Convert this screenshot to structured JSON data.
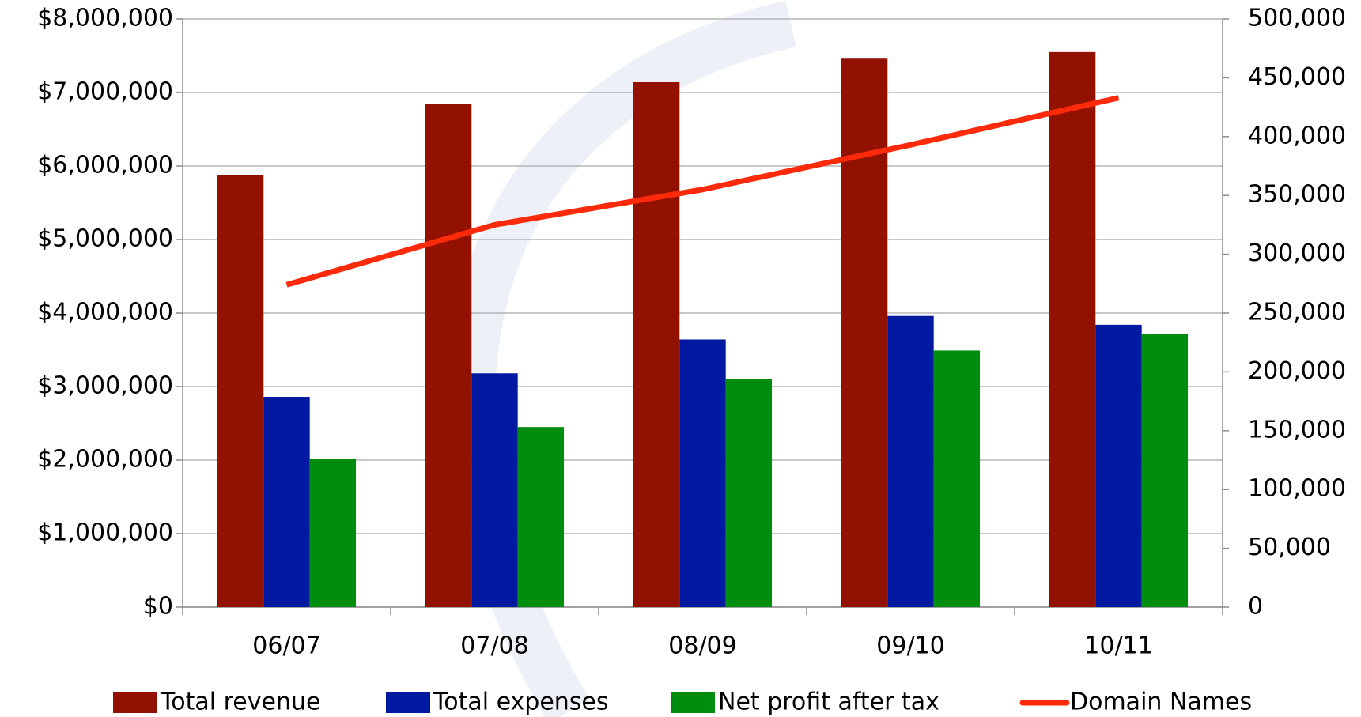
{
  "chart_data": {
    "type": "bar",
    "categories": [
      "06/07",
      "07/08",
      "08/09",
      "09/10",
      "10/11"
    ],
    "series": [
      {
        "name": "Total revenue",
        "color": "#931100",
        "values": [
          5880000,
          6840000,
          7140000,
          7460000,
          7550000
        ]
      },
      {
        "name": "Total expenses",
        "color": "#0019a0",
        "values": [
          2860000,
          3180000,
          3640000,
          3960000,
          3840000
        ]
      },
      {
        "name": "Net profit after tax",
        "color": "#008c0e",
        "values": [
          2020000,
          2450000,
          3100000,
          3490000,
          3710000
        ]
      },
      {
        "name": "Domain Names",
        "color": "#ff2a0a",
        "type": "line",
        "axis": "y2",
        "values": [
          274000,
          325000,
          355000,
          393000,
          433000
        ]
      }
    ],
    "ylim": [
      0,
      8000000
    ],
    "yticks": [
      {
        "value": 0,
        "label": "$0"
      },
      {
        "value": 1000000,
        "label": "$1,000,000"
      },
      {
        "value": 2000000,
        "label": "$2,000,000"
      },
      {
        "value": 3000000,
        "label": "$3,000,000"
      },
      {
        "value": 4000000,
        "label": "$4,000,000"
      },
      {
        "value": 5000000,
        "label": "$5,000,000"
      },
      {
        "value": 6000000,
        "label": "$6,000,000"
      },
      {
        "value": 7000000,
        "label": "$7,000,000"
      },
      {
        "value": 8000000,
        "label": "$8,000,000"
      }
    ],
    "y2lim": [
      0,
      500000
    ],
    "y2ticks": [
      0,
      {
        "value": 50000,
        "label": "50,000"
      },
      {
        "value": 100000,
        "label": "100,000"
      },
      {
        "value": 150000,
        "label": "150,000"
      },
      {
        "value": 200000,
        "label": "200,000"
      },
      {
        "value": 250000,
        "label": "250,000"
      },
      {
        "value": 300000,
        "label": "300,000"
      },
      {
        "value": 350000,
        "label": "350,000"
      },
      {
        "value": 400000,
        "label": "400,000"
      },
      {
        "value": 450000,
        "label": "450,000"
      },
      {
        "value": 500000,
        "label": "500,000"
      }
    ],
    "grid": true,
    "legend": "bottom"
  }
}
